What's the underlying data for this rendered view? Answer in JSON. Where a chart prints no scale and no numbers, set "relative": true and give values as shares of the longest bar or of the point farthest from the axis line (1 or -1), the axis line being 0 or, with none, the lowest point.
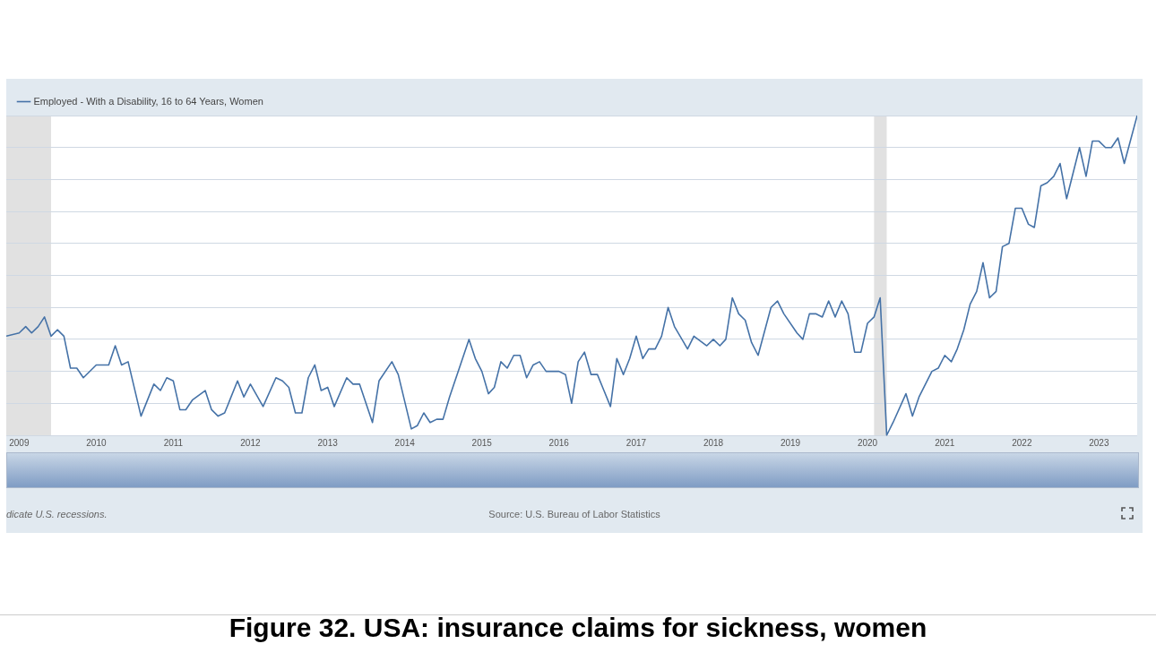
{
  "chart_data": {
    "type": "line",
    "title": "Figure 32. USA: insurance claims for sickness, women",
    "relative": true,
    "grid": "y",
    "legend": "top left",
    "x": [
      "2008-11",
      "2009-01",
      "2009-02",
      "2009-03",
      "2009-04",
      "2009-05",
      "2009-06",
      "2009-07",
      "2009-08",
      "2009-09",
      "2009-10",
      "2009-11",
      "2010-01",
      "2010-03",
      "2010-04",
      "2010-05",
      "2010-06",
      "2010-08",
      "2010-10",
      "2010-11",
      "2010-12",
      "2011-01",
      "2011-02",
      "2011-03",
      "2011-04",
      "2011-06",
      "2011-07",
      "2011-08",
      "2011-09",
      "2011-11",
      "2011-12",
      "2012-01",
      "2012-03",
      "2012-05",
      "2012-06",
      "2012-07",
      "2012-08",
      "2012-09",
      "2012-10",
      "2012-11",
      "2012-12",
      "2013-01",
      "2013-02",
      "2013-04",
      "2013-05",
      "2013-06",
      "2013-08",
      "2013-09",
      "2013-11",
      "2013-12",
      "2014-02",
      "2014-03",
      "2014-04",
      "2014-05",
      "2014-06",
      "2014-07",
      "2014-08",
      "2014-11",
      "2014-12",
      "2015-01",
      "2015-02",
      "2015-03",
      "2015-04",
      "2015-05",
      "2015-06",
      "2015-07",
      "2015-08",
      "2015-09",
      "2015-10",
      "2015-11",
      "2016-01",
      "2016-02",
      "2016-03",
      "2016-04",
      "2016-05",
      "2016-06",
      "2016-07",
      "2016-08",
      "2016-09",
      "2016-10",
      "2016-11",
      "2016-12",
      "2017-01",
      "2017-02",
      "2017-03",
      "2017-04",
      "2017-05",
      "2017-06",
      "2017-07",
      "2017-09",
      "2017-10",
      "2017-12",
      "2018-01",
      "2018-02",
      "2018-03",
      "2018-04",
      "2018-05",
      "2018-06",
      "2018-07",
      "2018-08",
      "2018-10",
      "2018-11",
      "2018-12",
      "2019-02",
      "2019-03",
      "2019-04",
      "2019-05",
      "2019-06",
      "2019-07",
      "2019-08",
      "2019-09",
      "2019-10",
      "2019-11",
      "2019-12",
      "2020-01",
      "2020-02",
      "2020-03",
      "2020-04",
      "2020-05",
      "2020-07",
      "2020-08",
      "2020-09",
      "2020-11",
      "2020-12",
      "2021-01",
      "2021-02",
      "2021-03",
      "2021-04",
      "2021-05",
      "2021-06",
      "2021-07",
      "2021-08",
      "2021-09",
      "2021-10",
      "2021-11",
      "2021-12",
      "2022-01",
      "2022-02",
      "2022-03",
      "2022-04",
      "2022-05",
      "2022-06",
      "2022-07",
      "2022-08",
      "2022-10",
      "2022-11",
      "2022-12",
      "2023-01",
      "2023-02",
      "2023-03",
      "2023-04",
      "2023-05",
      "2023-07"
    ],
    "series": [
      {
        "name": "Employed - With a Disability, 16 to 64 Years, Women",
        "color": "#4572a7",
        "values": [
          0.31,
          0.32,
          0.34,
          0.32,
          0.34,
          0.37,
          0.31,
          0.33,
          0.31,
          0.21,
          0.21,
          0.18,
          0.22,
          0.22,
          0.28,
          0.22,
          0.23,
          0.06,
          0.16,
          0.14,
          0.18,
          0.17,
          0.08,
          0.08,
          0.11,
          0.14,
          0.08,
          0.06,
          0.07,
          0.17,
          0.12,
          0.16,
          0.09,
          0.18,
          0.17,
          0.15,
          0.07,
          0.07,
          0.18,
          0.22,
          0.14,
          0.15,
          0.09,
          0.18,
          0.16,
          0.16,
          0.04,
          0.17,
          0.23,
          0.19,
          0.02,
          0.03,
          0.07,
          0.04,
          0.05,
          0.05,
          0.12,
          0.3,
          0.24,
          0.2,
          0.13,
          0.15,
          0.23,
          0.21,
          0.25,
          0.25,
          0.18,
          0.22,
          0.23,
          0.2,
          0.2,
          0.19,
          0.1,
          0.23,
          0.26,
          0.19,
          0.19,
          0.14,
          0.09,
          0.24,
          0.19,
          0.24,
          0.31,
          0.24,
          0.27,
          0.27,
          0.31,
          0.4,
          0.34,
          0.27,
          0.31,
          0.28,
          0.3,
          0.28,
          0.3,
          0.43,
          0.38,
          0.36,
          0.29,
          0.25,
          0.4,
          0.42,
          0.38,
          0.32,
          0.3,
          0.38,
          0.38,
          0.37,
          0.42,
          0.37,
          0.42,
          0.38,
          0.26,
          0.26,
          0.35,
          0.37,
          0.43,
          0.0,
          0.04,
          0.13,
          0.06,
          0.12,
          0.2,
          0.21,
          0.25,
          0.23,
          0.27,
          0.33,
          0.41,
          0.45,
          0.54,
          0.43,
          0.45,
          0.59,
          0.6,
          0.71,
          0.71,
          0.66,
          0.65,
          0.78,
          0.79,
          0.81,
          0.85,
          0.74,
          0.9,
          0.81,
          0.92,
          0.92,
          0.9,
          0.9,
          0.93,
          0.85,
          1.0
        ]
      }
    ],
    "xlim": [
      "2008-11",
      "2023-07"
    ],
    "xticks": [
      "2009",
      "2010",
      "2011",
      "2012",
      "2013",
      "2014",
      "2015",
      "2016",
      "2017",
      "2018",
      "2019",
      "2020",
      "2021",
      "2022",
      "2023"
    ],
    "bands": [
      {
        "axis": "x",
        "from": "2008-11",
        "to": "2009-06",
        "color": "#e1e1e1"
      },
      {
        "axis": "x",
        "from": "2020-02",
        "to": "2020-04",
        "color": "#e1e1e1"
      }
    ],
    "annotations": [
      "dicate U.S. recessions.",
      "Source: U.S. Bureau of Labor Statistics"
    ]
  }
}
